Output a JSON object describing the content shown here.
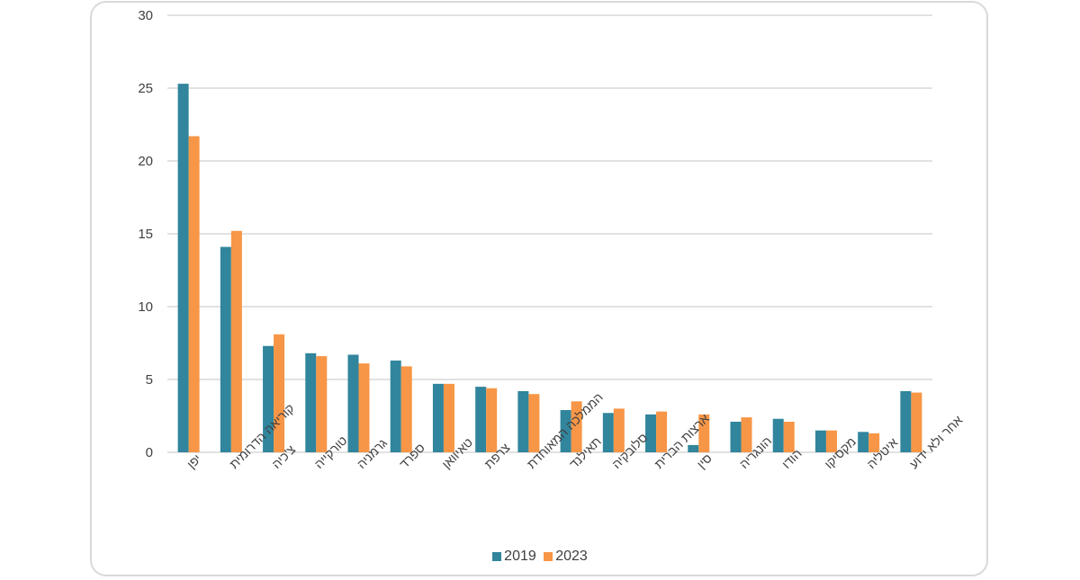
{
  "chart_data": {
    "type": "bar",
    "categories": [
      "יפן",
      "קוריאה הדרומית",
      "צ'כיה",
      "טורקייה",
      "גרמניה",
      "ספרד",
      "טאיוואן",
      "צרפת",
      "הממלכה המאוחדת",
      "תאילנד",
      "סלובקיה",
      "ארצות הברית",
      "סין",
      "הונגריה",
      "הודו",
      "מקסיקו",
      "איטליה",
      "אחר ולא ידוע"
    ],
    "series": [
      {
        "name": "2019",
        "color": "#31859c",
        "values": [
          25.3,
          14.1,
          7.3,
          6.8,
          6.7,
          6.3,
          4.7,
          4.5,
          4.2,
          2.9,
          2.7,
          2.6,
          0.5,
          2.1,
          2.3,
          1.5,
          1.4,
          4.2
        ]
      },
      {
        "name": "2023",
        "color": "#f79646",
        "values": [
          21.7,
          15.2,
          8.1,
          6.6,
          6.1,
          5.9,
          4.7,
          4.4,
          4.0,
          3.5,
          3.0,
          2.8,
          2.6,
          2.4,
          2.1,
          1.5,
          1.3,
          4.1
        ]
      }
    ],
    "y_ticks": [
      "0",
      "5",
      "10",
      "15",
      "20",
      "25",
      "30"
    ],
    "ylim": [
      0,
      30
    ],
    "grid": true,
    "legend_position": "bottom",
    "title": "",
    "xlabel": "",
    "ylabel": ""
  }
}
